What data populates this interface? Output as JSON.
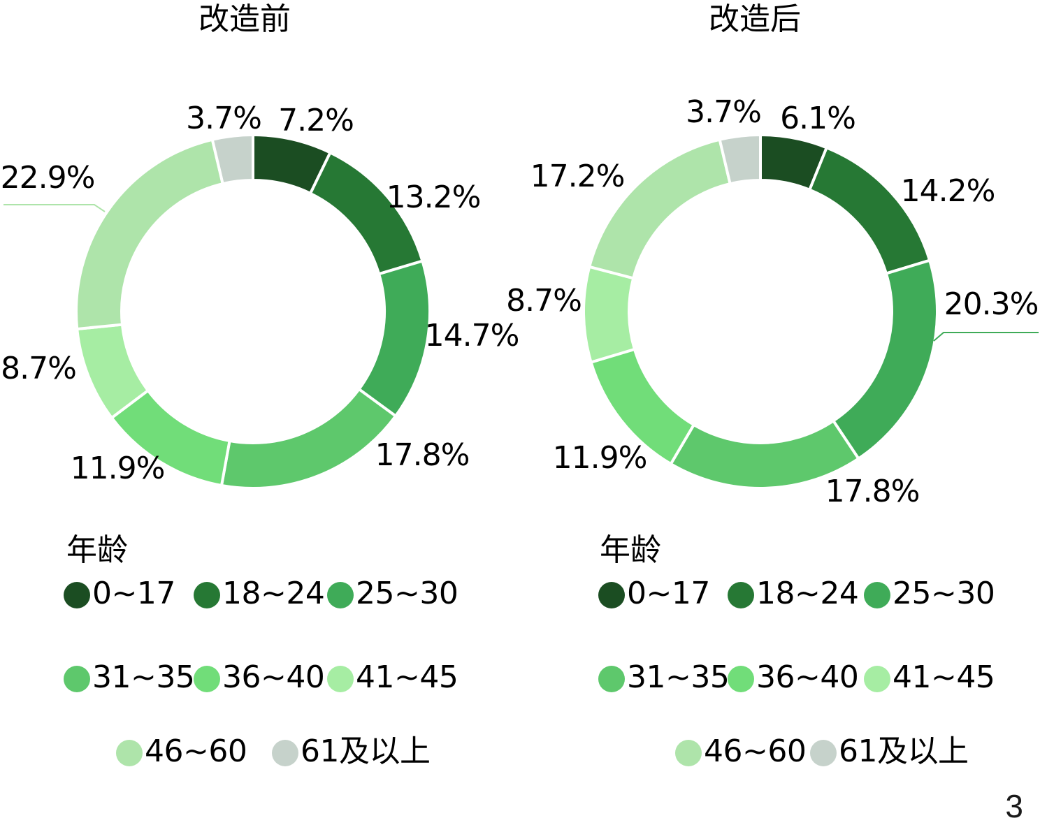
{
  "chart_data": [
    {
      "type": "pie",
      "title": "改造前",
      "categories": [
        "0~17",
        "18~24",
        "25~30",
        "31~35",
        "36~40",
        "41~45",
        "46~60",
        "61及以上"
      ],
      "values": [
        7.2,
        13.2,
        14.7,
        17.8,
        11.9,
        8.7,
        22.9,
        3.7
      ],
      "data_labels": [
        "7.2%",
        "13.2%",
        "14.7%",
        "17.8%",
        "11.9%",
        "8.7%",
        "22.9%",
        "3.7%"
      ],
      "legend": {
        "title": "年龄",
        "placement": "bottom"
      },
      "donut": true
    },
    {
      "type": "pie",
      "title": "改造后",
      "categories": [
        "0~17",
        "18~24",
        "25~30",
        "31~35",
        "36~40",
        "41~45",
        "46~60",
        "61及以上"
      ],
      "values": [
        6.1,
        14.2,
        20.3,
        17.8,
        11.9,
        8.7,
        17.2,
        3.7
      ],
      "data_labels": [
        "6.1%",
        "14.2%",
        "20.3%",
        "17.8%",
        "11.9%",
        "8.7%",
        "17.2%",
        "3.7%"
      ],
      "legend": {
        "title": "年龄",
        "placement": "bottom"
      },
      "donut": true
    }
  ],
  "colors": [
    "#1b4d22",
    "#267834",
    "#3fab58",
    "#5ec86c",
    "#71dd79",
    "#a6eda3",
    "#aee4aa",
    "#c6d2cb"
  ],
  "page_number": "3"
}
